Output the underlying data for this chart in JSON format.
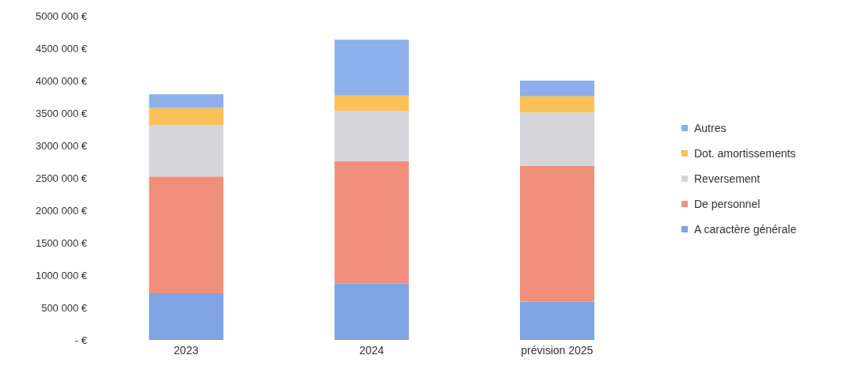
{
  "chart_data": {
    "type": "bar",
    "stacked": true,
    "categories": [
      "2023",
      "2024",
      "prévision 2025"
    ],
    "series": [
      {
        "name": "A caractère générale",
        "color": "#7fa3e3",
        "values": [
          720000,
          870000,
          590000
        ]
      },
      {
        "name": "De personnel",
        "color": "#f0907c",
        "values": [
          1800000,
          1890000,
          2100000
        ]
      },
      {
        "name": "Reversement",
        "color": "#d6d6da",
        "values": [
          790000,
          770000,
          820000
        ]
      },
      {
        "name": "Dot. amortissements",
        "color": "#fbc05a",
        "values": [
          270000,
          240000,
          250000
        ]
      },
      {
        "name": "Autres",
        "color": "#8db0ec",
        "values": [
          210000,
          860000,
          240000
        ]
      }
    ],
    "ylim": [
      0,
      5000000
    ],
    "yticks": [
      {
        "value": 0,
        "label": "- €"
      },
      {
        "value": 500000,
        "label": "500 000 €"
      },
      {
        "value": 1000000,
        "label": "1000 000 €"
      },
      {
        "value": 1500000,
        "label": "1500 000 €"
      },
      {
        "value": 2000000,
        "label": "2000 000 €"
      },
      {
        "value": 2500000,
        "label": "2500 000 €"
      },
      {
        "value": 3000000,
        "label": "3000 000 €"
      },
      {
        "value": 3500000,
        "label": "3500 000 €"
      },
      {
        "value": 4000000,
        "label": "4000 000 €"
      },
      {
        "value": 4500000,
        "label": "4500 000 €"
      },
      {
        "value": 5000000,
        "label": "5000 000 €"
      }
    ],
    "grid": false,
    "legend": "right"
  }
}
